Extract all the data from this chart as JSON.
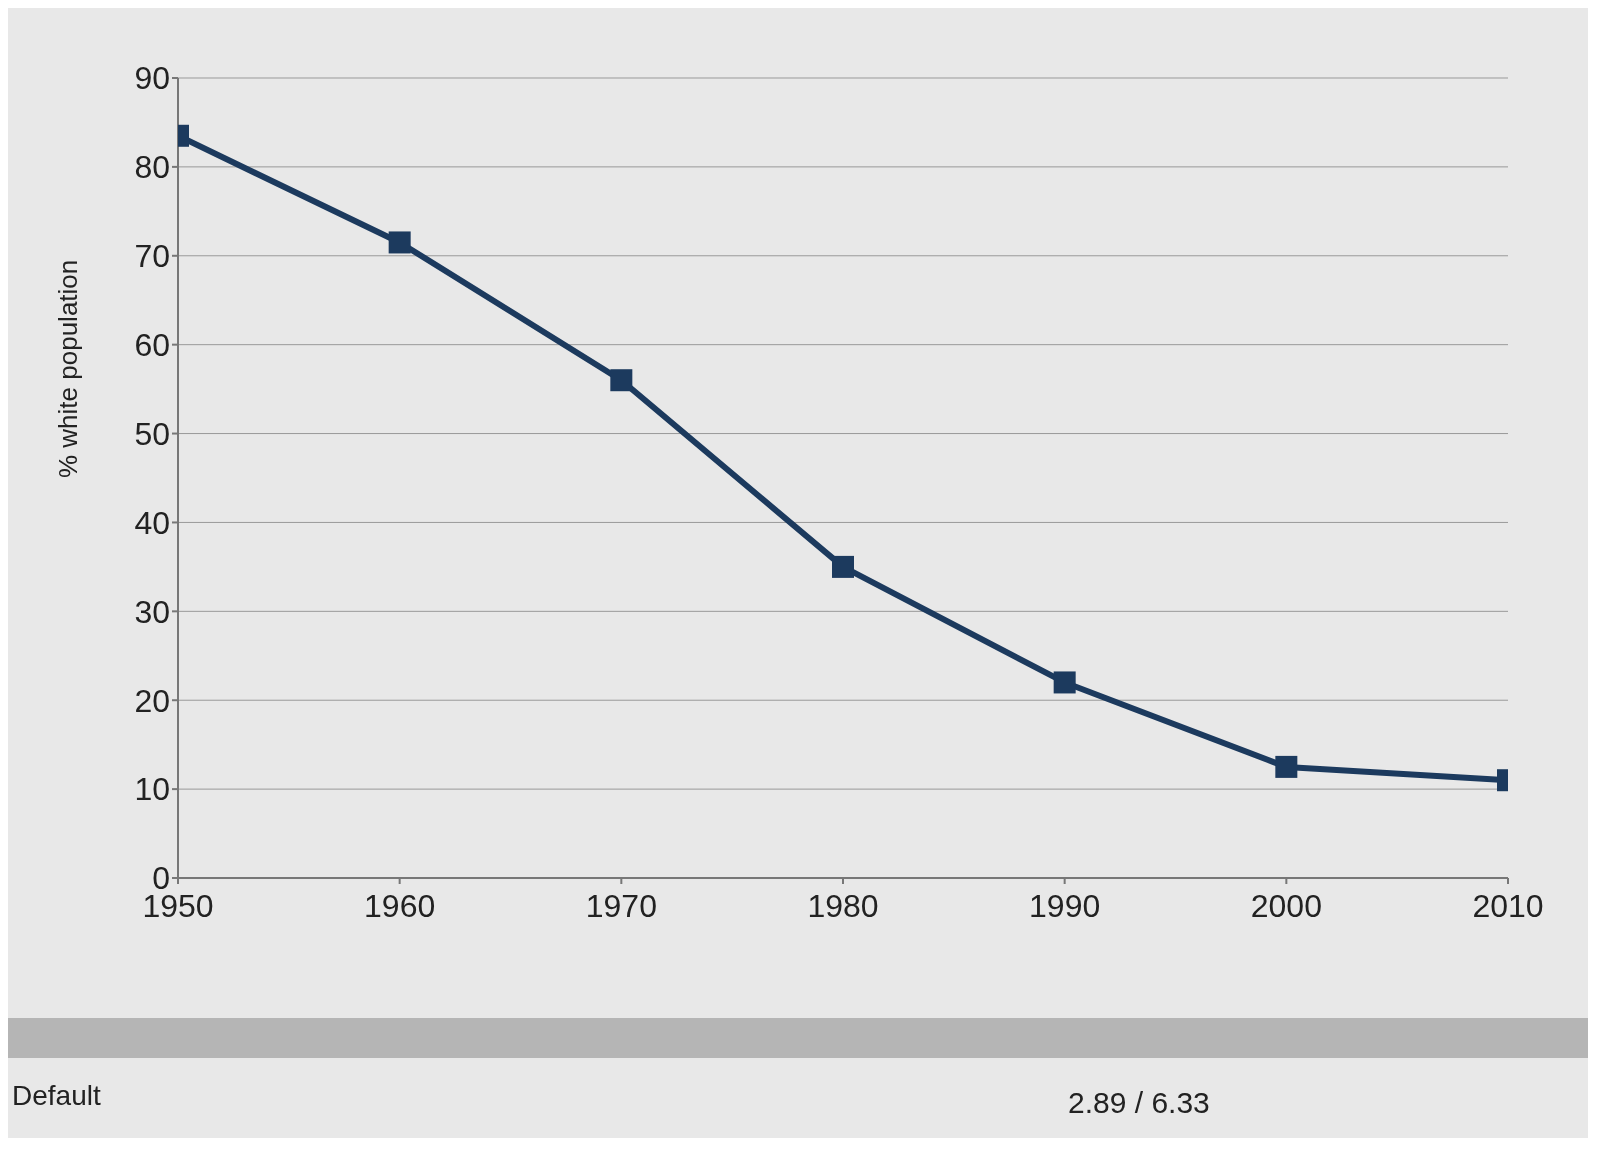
{
  "chart_data": {
    "type": "line",
    "ylabel": "% white population",
    "x": [
      1950,
      1960,
      1970,
      1980,
      1990,
      2000,
      2010
    ],
    "values": [
      83.5,
      71.5,
      56,
      35,
      22,
      12.5,
      11
    ],
    "color": "#1c3a5e",
    "marker": "square",
    "xlim": [
      1950,
      2010
    ],
    "xticks": [
      1950,
      1960,
      1970,
      1980,
      1990,
      2000,
      2010
    ],
    "ylim": [
      0,
      90
    ],
    "yticks": [
      0,
      10,
      20,
      30,
      40,
      50,
      60,
      70,
      80,
      90
    ],
    "grid": "y",
    "annotations": [
      "Default",
      "2.89 / 6.33"
    ]
  }
}
